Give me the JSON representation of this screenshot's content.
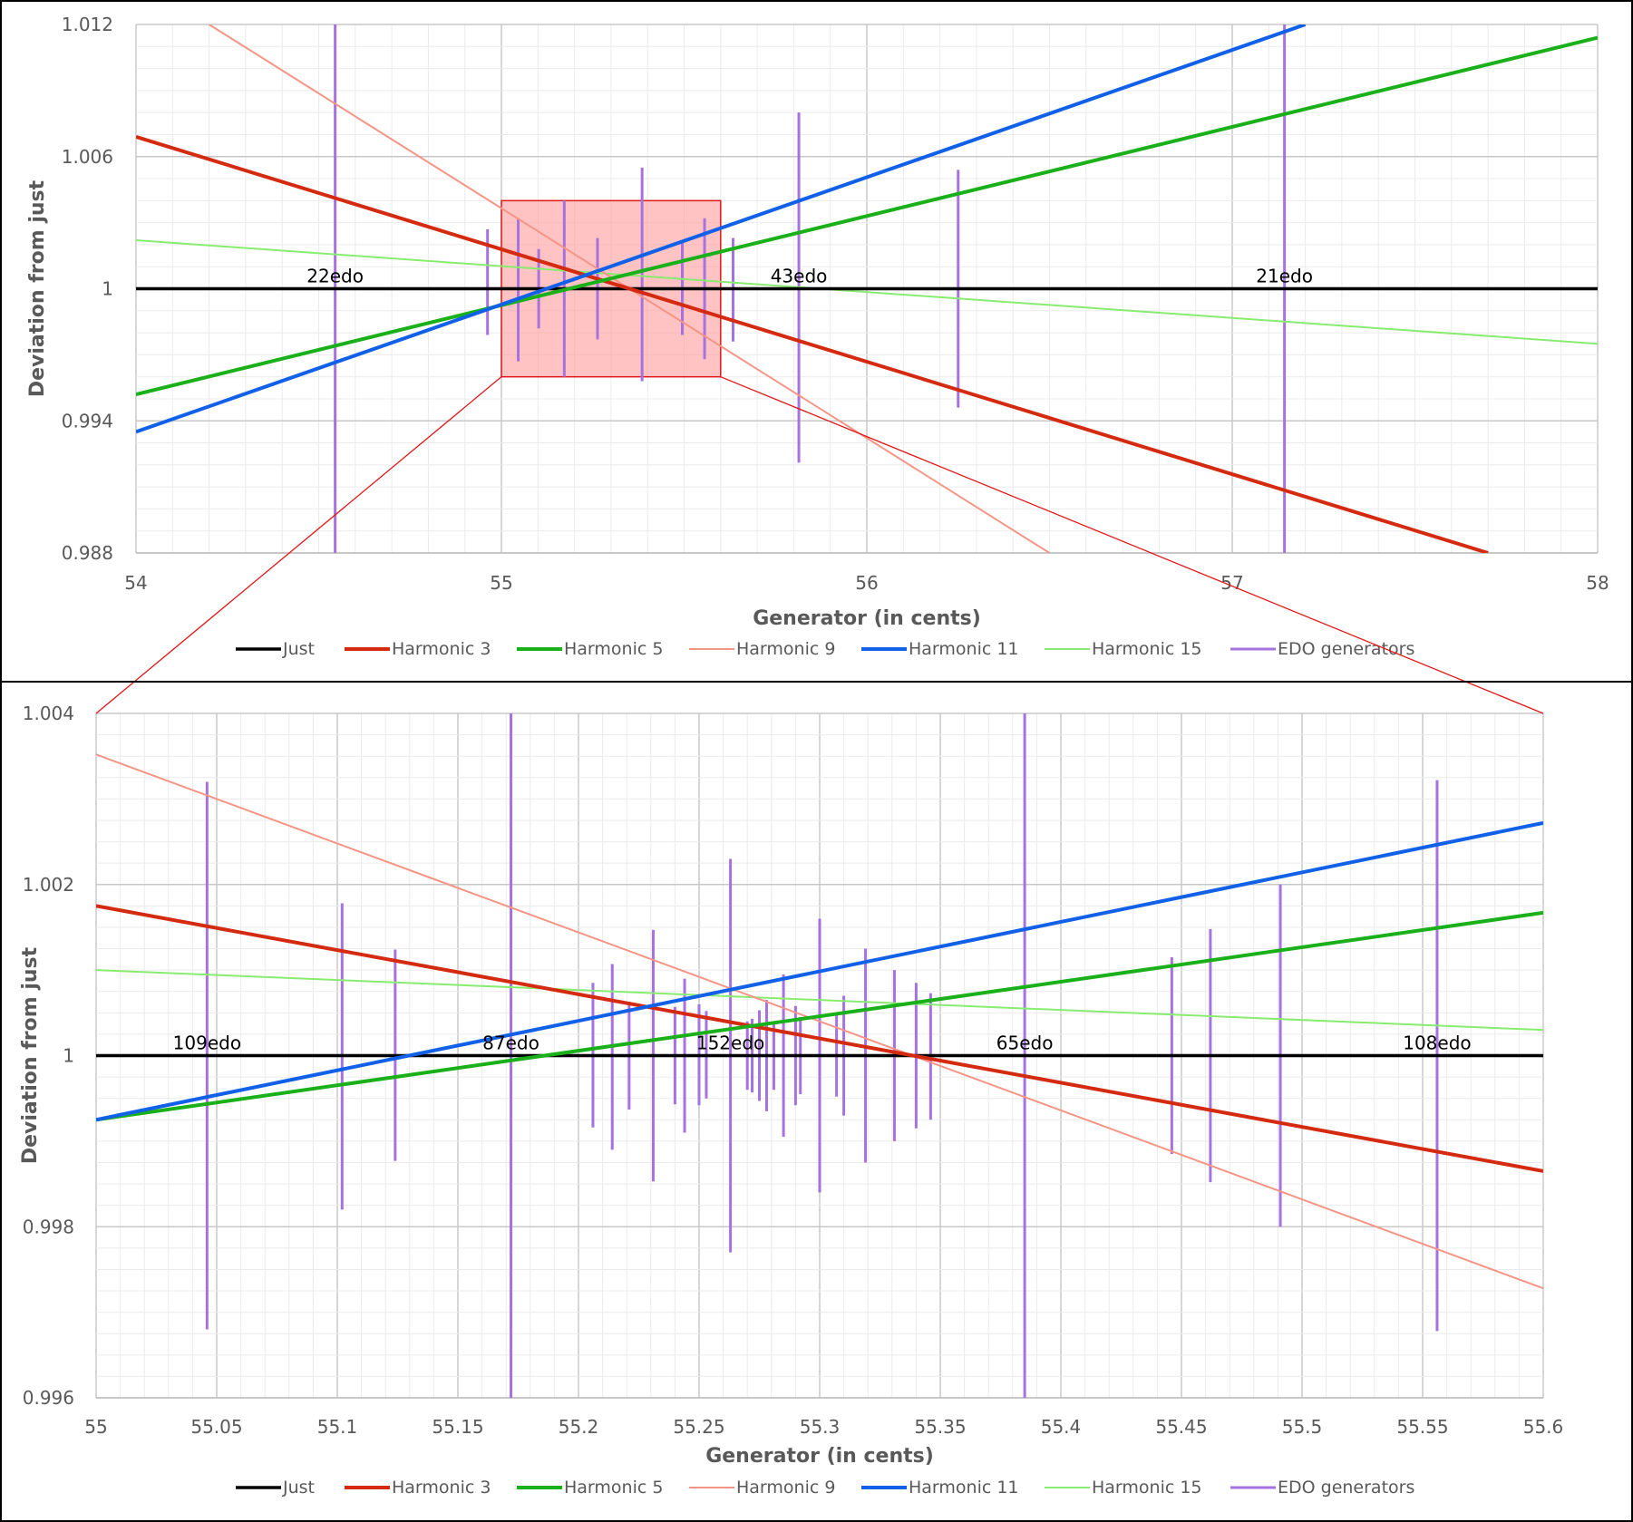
{
  "chart_data": [
    {
      "type": "line",
      "xlabel": "Generator (in cents)",
      "ylabel": "Deviation from just",
      "xlim": [
        54,
        58
      ],
      "ylim": [
        0.988,
        1.012
      ],
      "x_ticks": [
        "54",
        "55",
        "56",
        "57",
        "58"
      ],
      "y_ticks": [
        "0.988",
        "0.994",
        "1",
        "1.006",
        "1.012"
      ],
      "grid": true,
      "legend_position": "bottom",
      "series": [
        {
          "name": "Just",
          "color": "#000000",
          "points": [
            [
              54,
              1.0
            ],
            [
              58,
              1.0
            ]
          ]
        },
        {
          "name": "Harmonic 3",
          "color": "#d42a10",
          "points": [
            [
              54,
              1.0069
            ],
            [
              57.7,
              0.988
            ]
          ]
        },
        {
          "name": "Harmonic 5",
          "color": "#19b019",
          "points": [
            [
              54,
              0.9952
            ],
            [
              58,
              1.0114
            ]
          ]
        },
        {
          "name": "Harmonic 9",
          "color": "#f49585",
          "points": [
            [
              54.2,
              1.012
            ],
            [
              56.5,
              0.988
            ]
          ]
        },
        {
          "name": "Harmonic 11",
          "color": "#1160e8",
          "points": [
            [
              54,
              0.9935
            ],
            [
              57.2,
              1.012
            ]
          ]
        },
        {
          "name": "Harmonic 15",
          "color": "#88ec70",
          "points": [
            [
              54,
              1.0022
            ],
            [
              58,
              0.9975
            ]
          ]
        },
        {
          "name": "EDO generators",
          "color": "#a672e0",
          "bars": [
            [
              54.545,
              0.988,
              1.012
            ],
            [
              54.962,
              0.9979,
              1.0027
            ],
            [
              55.046,
              0.9967,
              1.0032
            ],
            [
              55.102,
              0.9982,
              1.0018
            ],
            [
              55.172,
              0.996,
              1.004
            ],
            [
              55.263,
              0.9977,
              1.0023
            ],
            [
              55.385,
              0.9958,
              1.0055
            ],
            [
              55.495,
              0.9979,
              1.0021
            ],
            [
              55.556,
              0.9968,
              1.0032
            ],
            [
              55.634,
              0.9976,
              1.0023
            ],
            [
              55.814,
              0.9921,
              1.008
            ],
            [
              56.25,
              0.9946,
              1.0054
            ],
            [
              57.143,
              0.988,
              1.012
            ]
          ]
        }
      ],
      "annotations": [
        {
          "text": "22edo",
          "x": 54.545,
          "y": 1.0
        },
        {
          "text": "43edo",
          "x": 55.814,
          "y": 1.0
        },
        {
          "text": "21edo",
          "x": 57.143,
          "y": 1.0
        }
      ],
      "zoom_region": {
        "x": [
          55.0,
          55.6
        ],
        "y": [
          0.996,
          1.004
        ]
      }
    },
    {
      "type": "line",
      "xlabel": "Generator (in cents)",
      "ylabel": "Deviation from just",
      "xlim": [
        55,
        55.6
      ],
      "ylim": [
        0.996,
        1.004
      ],
      "x_ticks": [
        "55",
        "55.05",
        "55.1",
        "55.15",
        "55.2",
        "55.25",
        "55.3",
        "55.35",
        "55.4",
        "55.45",
        "55.5",
        "55.55",
        "55.6"
      ],
      "y_ticks": [
        "0.996",
        "0.998",
        "1",
        "1.002",
        "1.004"
      ],
      "grid": true,
      "legend_position": "bottom",
      "series": [
        {
          "name": "Just",
          "color": "#000000",
          "points": [
            [
              55,
              1.0
            ],
            [
              55.6,
              1.0
            ]
          ]
        },
        {
          "name": "Harmonic 3",
          "color": "#d42a10",
          "points": [
            [
              55,
              1.00175
            ],
            [
              55.6,
              0.99865
            ]
          ]
        },
        {
          "name": "Harmonic 5",
          "color": "#19b019",
          "points": [
            [
              55,
              0.99925
            ],
            [
              55.6,
              1.00167
            ]
          ]
        },
        {
          "name": "Harmonic 9",
          "color": "#f49585",
          "points": [
            [
              55,
              1.00352
            ],
            [
              55.6,
              0.99728
            ]
          ]
        },
        {
          "name": "Harmonic 11",
          "color": "#1160e8",
          "points": [
            [
              55,
              0.99925
            ],
            [
              55.6,
              1.00272
            ]
          ]
        },
        {
          "name": "Harmonic 15",
          "color": "#88ec70",
          "points": [
            [
              55,
              1.001
            ],
            [
              55.6,
              1.0003
            ]
          ]
        },
        {
          "name": "EDO generators",
          "color": "#a672e0",
          "bars": [
            [
              55.046,
              0.9968,
              1.0032
            ],
            [
              55.102,
              0.9982,
              1.00178
            ],
            [
              55.124,
              0.99877,
              1.00124
            ],
            [
              55.172,
              0.996,
              1.004
            ],
            [
              55.206,
              0.99916,
              1.00085
            ],
            [
              55.214,
              0.9989,
              1.00107
            ],
            [
              55.221,
              0.99937,
              1.00063
            ],
            [
              55.231,
              0.99853,
              1.00147
            ],
            [
              55.24,
              0.99943,
              1.00057
            ],
            [
              55.244,
              0.9991,
              1.0009
            ],
            [
              55.25,
              0.99942,
              1.0006
            ],
            [
              55.253,
              0.9995,
              1.00052
            ],
            [
              55.263,
              0.9977,
              1.0023
            ],
            [
              55.27,
              0.9996,
              1.0004
            ],
            [
              55.272,
              0.99957,
              1.00043
            ],
            [
              55.275,
              0.99947,
              1.00053
            ],
            [
              55.278,
              0.99935,
              1.00065
            ],
            [
              55.281,
              0.9996,
              1.0004
            ],
            [
              55.285,
              0.99905,
              1.00095
            ],
            [
              55.29,
              0.99942,
              1.00058
            ],
            [
              55.292,
              0.99955,
              1.00045
            ],
            [
              55.3,
              0.9984,
              1.0016
            ],
            [
              55.307,
              0.99952,
              1.0005
            ],
            [
              55.31,
              0.9993,
              1.0007
            ],
            [
              55.319,
              0.99875,
              1.00125
            ],
            [
              55.331,
              0.999,
              1.001
            ],
            [
              55.34,
              0.99915,
              1.00085
            ],
            [
              55.346,
              0.99925,
              1.00073
            ],
            [
              55.385,
              0.996,
              1.004
            ],
            [
              55.446,
              0.99885,
              1.00115
            ],
            [
              55.462,
              0.99852,
              1.00148
            ],
            [
              55.491,
              0.998,
              1.002
            ],
            [
              55.556,
              0.99678,
              1.00322
            ]
          ]
        }
      ],
      "annotations": [
        {
          "text": "109edo",
          "x": 55.046,
          "y": 1.0
        },
        {
          "text": "87edo",
          "x": 55.172,
          "y": 1.0
        },
        {
          "text": "152edo",
          "x": 55.263,
          "y": 1.0
        },
        {
          "text": "65edo",
          "x": 55.385,
          "y": 1.0
        },
        {
          "text": "108edo",
          "x": 55.556,
          "y": 1.0
        }
      ]
    }
  ]
}
